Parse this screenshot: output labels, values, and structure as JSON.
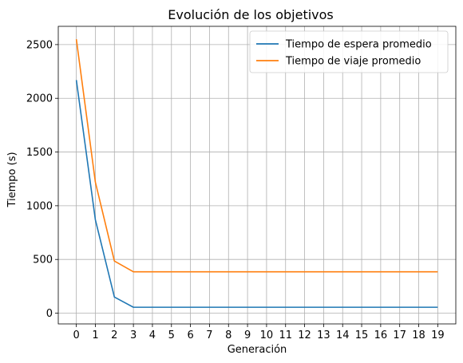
{
  "chart_data": {
    "type": "line",
    "title": "Evolución de los objetivos",
    "xlabel": "Generación",
    "ylabel": "Tiempo (s)",
    "x": [
      0,
      1,
      2,
      3,
      4,
      5,
      6,
      7,
      8,
      9,
      10,
      11,
      12,
      13,
      14,
      15,
      16,
      17,
      18,
      19
    ],
    "xticks": [
      "0",
      "1",
      "2",
      "3",
      "4",
      "5",
      "6",
      "7",
      "8",
      "9",
      "10",
      "11",
      "12",
      "13",
      "14",
      "15",
      "16",
      "17",
      "18",
      "19"
    ],
    "yticks": [
      0,
      500,
      1000,
      1500,
      2000,
      2500
    ],
    "ytick_labels": [
      "0",
      "500",
      "1000",
      "1500",
      "2000",
      "2500"
    ],
    "xlim": [
      -0.95,
      19.95
    ],
    "ylim": [
      -100,
      2670
    ],
    "grid": true,
    "legend_position": "top-right",
    "series": [
      {
        "name": "Tiempo de espera promedio",
        "color": "#1f77b4",
        "values": [
          2170,
          870,
          150,
          55,
          55,
          55,
          55,
          55,
          55,
          55,
          55,
          55,
          55,
          55,
          55,
          55,
          55,
          55,
          55,
          55
        ]
      },
      {
        "name": "Tiempo de viaje promedio",
        "color": "#ff7f0e",
        "values": [
          2550,
          1220,
          485,
          385,
          385,
          385,
          385,
          385,
          385,
          385,
          385,
          385,
          385,
          385,
          385,
          385,
          385,
          385,
          385,
          385
        ]
      }
    ]
  }
}
